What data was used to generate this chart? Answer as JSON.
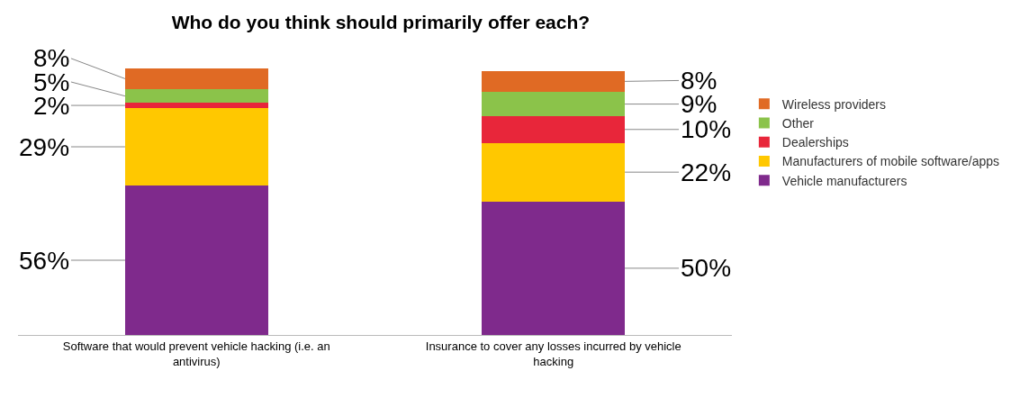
{
  "chart_data": {
    "type": "bar",
    "stacked": true,
    "title": "Who do you think should primarily offer each?",
    "categories": [
      "Software that would prevent vehicle hacking (i.e. an antivirus)",
      "Insurance to cover any losses incurred by vehicle hacking"
    ],
    "series": [
      {
        "name": "Vehicle manufacturers",
        "color": "#7f2a8c",
        "values": [
          56,
          50
        ],
        "value_labels": [
          "56%",
          "50%"
        ]
      },
      {
        "name": "Manufacturers of mobile software/apps",
        "color": "#ffc800",
        "values": [
          29,
          22
        ],
        "value_labels": [
          "29%",
          "22%"
        ]
      },
      {
        "name": "Dealerships",
        "color": "#e8263a",
        "values": [
          2,
          10
        ],
        "value_labels": [
          "2%",
          "10%"
        ]
      },
      {
        "name": "Other",
        "color": "#8bc34a",
        "values": [
          5,
          9
        ],
        "value_labels": [
          "5%",
          "9%"
        ]
      },
      {
        "name": "Wireless providers",
        "color": "#e06a24",
        "values": [
          8,
          8
        ],
        "value_labels": [
          "8%",
          "8%"
        ]
      }
    ],
    "legend": "right"
  }
}
